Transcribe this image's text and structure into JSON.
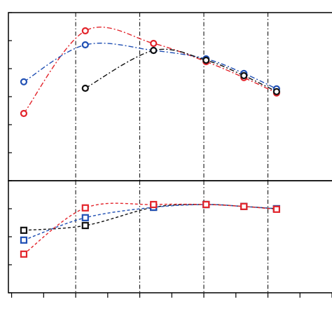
{
  "chart_data": [
    {
      "type": "line",
      "marker": "circle",
      "linestyle": "dashdot",
      "grid": true,
      "xlim": [
        -0.1,
        10
      ],
      "xticks": [
        0,
        1,
        2,
        3,
        4,
        5,
        6,
        7,
        8,
        9,
        10
      ],
      "ylim": [
        0,
        6
      ],
      "yticks": [
        0,
        1,
        2,
        3,
        4,
        5,
        6
      ],
      "series": [
        {
          "color": "#e3242b",
          "x": [
            0.38,
            2.3,
            4.43,
            6.07,
            7.25,
            8.27
          ],
          "values": [
            2.4,
            5.35,
            4.9,
            4.25,
            3.68,
            3.13
          ]
        },
        {
          "color": "#1f4fb4",
          "x": [
            0.38,
            2.3,
            4.43,
            6.07,
            7.25,
            8.27
          ],
          "values": [
            3.53,
            4.85,
            4.65,
            4.35,
            3.83,
            3.28
          ]
        },
        {
          "color": "#111111",
          "x": [
            2.3,
            4.43,
            6.07,
            7.25,
            8.27
          ],
          "values": [
            3.3,
            4.65,
            4.3,
            3.75,
            3.18
          ]
        }
      ]
    },
    {
      "type": "line",
      "marker": "square",
      "linestyle": "dashed",
      "grid": true,
      "xlim": [
        -0.1,
        10
      ],
      "xticks": [
        0,
        1,
        2,
        3,
        4,
        5,
        6,
        7,
        8,
        9,
        10
      ],
      "ylim": [
        0,
        4
      ],
      "yticks": [
        0,
        1,
        2,
        3,
        4
      ],
      "series": [
        {
          "color": "#111111",
          "x": [
            0.38,
            2.3,
            4.43,
            6.07,
            7.25,
            8.27
          ],
          "values": [
            2.23,
            2.4,
            3.05,
            3.15,
            3.08,
            3.0
          ]
        },
        {
          "color": "#1f4fb4",
          "x": [
            0.38,
            2.3,
            4.43,
            6.07,
            7.25,
            8.27
          ],
          "values": [
            1.88,
            2.68,
            3.05,
            3.15,
            3.08,
            3.0
          ]
        },
        {
          "color": "#e3242b",
          "x": [
            0.38,
            2.3,
            4.43,
            6.07,
            7.25,
            8.27
          ],
          "values": [
            1.38,
            3.03,
            3.15,
            3.15,
            3.08,
            2.98
          ]
        }
      ]
    }
  ]
}
